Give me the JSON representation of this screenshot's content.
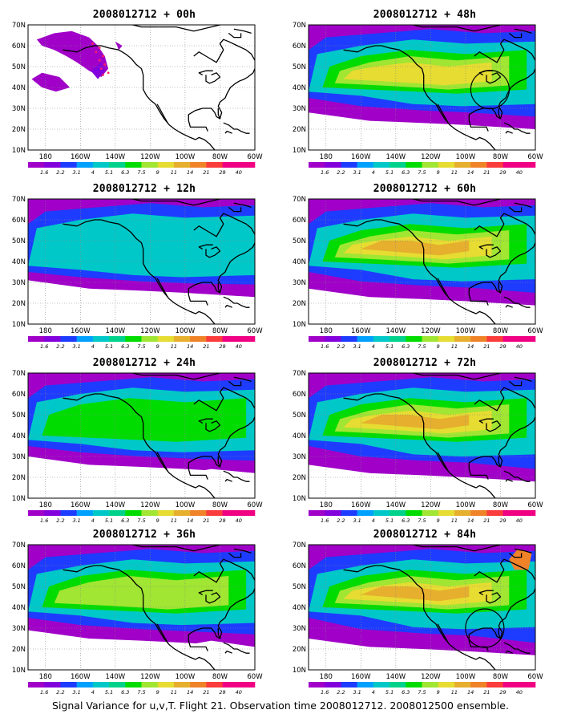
{
  "panels": [
    {
      "title": "2008012712 + 00h",
      "level": 0
    },
    {
      "title": "2008012712 + 48h",
      "level": 4
    },
    {
      "title": "2008012712 + 12h",
      "level": 1
    },
    {
      "title": "2008012712 + 60h",
      "level": 5
    },
    {
      "title": "2008012712 + 24h",
      "level": 2
    },
    {
      "title": "2008012712 + 72h",
      "level": 6
    },
    {
      "title": "2008012712 + 36h",
      "level": 3
    },
    {
      "title": "2008012712 + 84h",
      "level": 7
    }
  ],
  "lat_labels": [
    "70N",
    "60N",
    "50N",
    "40N",
    "30N",
    "20N",
    "10N"
  ],
  "lon_labels": [
    "180",
    "160W",
    "140W",
    "120W",
    "100W",
    "80W",
    "60W"
  ],
  "colorbar": {
    "labels": [
      "1.6",
      "2.2",
      "3.1",
      "4",
      "5.1",
      "6.3",
      "7.5",
      "9",
      "11",
      "14",
      "21",
      "29",
      "40"
    ],
    "colors": [
      "#a000c8",
      "#8200dc",
      "#1e3cff",
      "#00a0ff",
      "#00c8c8",
      "#00d28c",
      "#00dc00",
      "#a0e632",
      "#e6dc32",
      "#e6af2d",
      "#f08228",
      "#fa3c3c",
      "#f00082"
    ]
  },
  "footer": "Signal Variance for u,v,T. Flight 21. Observation time 2008012712. 2008012500 ensemble."
}
